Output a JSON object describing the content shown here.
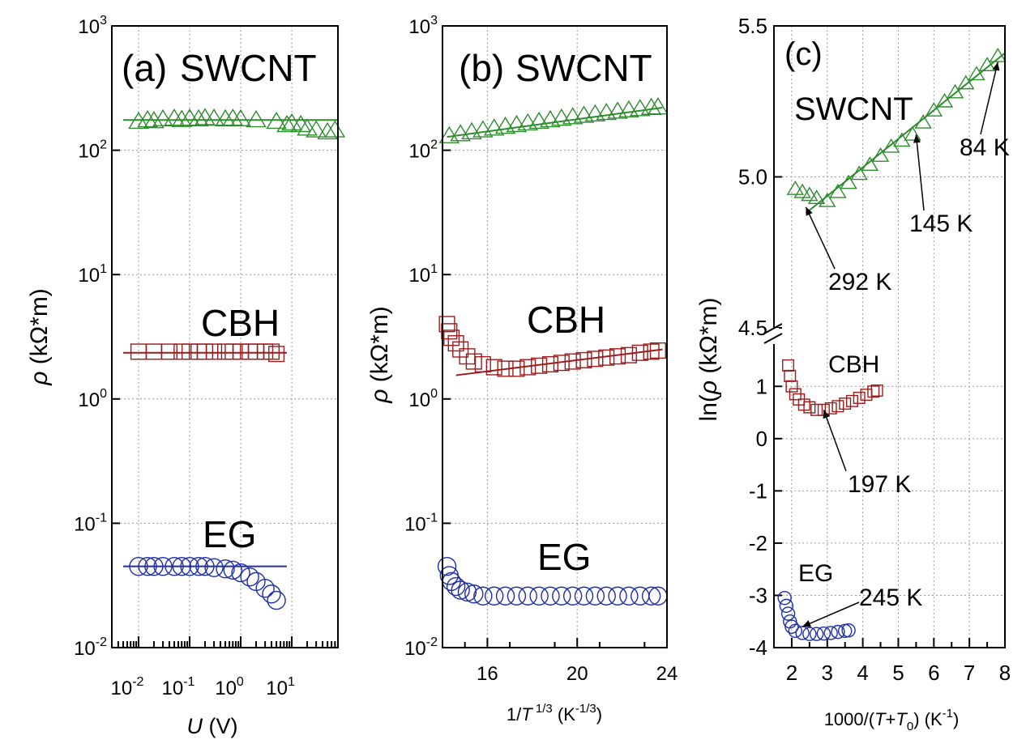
{
  "chart_data": [
    {
      "type": "scatter",
      "panel_label": "(a)",
      "xlabel": {
        "italic": "U",
        "rest": " (V)"
      },
      "ylabel": {
        "italic": "ρ",
        "rest": " (kΩ*m)"
      },
      "x_scale": "log",
      "y_scale": "log",
      "xlim": [
        0.003,
        80
      ],
      "ylim": [
        0.01,
        1000
      ],
      "x_ticks": [
        {
          "value": 0.01,
          "base": "10",
          "exp": "-2"
        },
        {
          "value": 0.1,
          "base": "10",
          "exp": "-1"
        },
        {
          "value": 1,
          "base": "10",
          "exp": "0"
        },
        {
          "value": 10,
          "base": "10",
          "exp": "1"
        }
      ],
      "y_ticks": [
        {
          "value": 0.01,
          "base": "10",
          "exp": "-2"
        },
        {
          "value": 0.1,
          "base": "10",
          "exp": "-1"
        },
        {
          "value": 1,
          "base": "10",
          "exp": "0"
        },
        {
          "value": 10,
          "base": "10",
          "exp": "1"
        },
        {
          "value": 100,
          "base": "10",
          "exp": "2"
        },
        {
          "value": 1000,
          "base": "10",
          "exp": "3"
        }
      ],
      "grid": true,
      "series": [
        {
          "name": "SWCNT",
          "marker": "triangle",
          "color": "#2e8b2e",
          "points": [
            [
              0.01,
              170
            ],
            [
              0.015,
              175
            ],
            [
              0.02,
              172
            ],
            [
              0.03,
              178
            ],
            [
              0.05,
              180
            ],
            [
              0.07,
              176
            ],
            [
              0.1,
              180
            ],
            [
              0.15,
              178
            ],
            [
              0.2,
              182
            ],
            [
              0.3,
              180
            ],
            [
              0.5,
              178
            ],
            [
              0.7,
              180
            ],
            [
              1,
              178
            ],
            [
              2,
              175
            ],
            [
              5,
              170
            ],
            [
              8,
              160
            ],
            [
              10,
              165
            ],
            [
              15,
              160
            ],
            [
              20,
              150
            ],
            [
              30,
              145
            ],
            [
              50,
              140
            ],
            [
              70,
              145
            ]
          ],
          "fit": [
            [
              0.005,
              175
            ],
            [
              80,
              175
            ]
          ]
        },
        {
          "name": "CBH",
          "marker": "square",
          "color": "#9b1c1c",
          "points": [
            [
              0.01,
              2.4
            ],
            [
              0.02,
              2.4
            ],
            [
              0.04,
              2.4
            ],
            [
              0.07,
              2.4
            ],
            [
              0.1,
              2.4
            ],
            [
              0.15,
              2.4
            ],
            [
              0.2,
              2.4
            ],
            [
              0.3,
              2.4
            ],
            [
              0.5,
              2.4
            ],
            [
              0.7,
              2.4
            ],
            [
              1,
              2.4
            ],
            [
              1.5,
              2.4
            ],
            [
              2,
              2.4
            ],
            [
              3,
              2.4
            ],
            [
              4,
              2.4
            ],
            [
              5,
              2.3
            ]
          ],
          "fit": [
            [
              0.005,
              2.35
            ],
            [
              8,
              2.35
            ]
          ]
        },
        {
          "name": "EG",
          "marker": "circle",
          "color": "#1f2fa8",
          "points": [
            [
              0.01,
              0.045
            ],
            [
              0.015,
              0.045
            ],
            [
              0.02,
              0.045
            ],
            [
              0.03,
              0.045
            ],
            [
              0.05,
              0.045
            ],
            [
              0.07,
              0.045
            ],
            [
              0.1,
              0.045
            ],
            [
              0.15,
              0.045
            ],
            [
              0.2,
              0.045
            ],
            [
              0.3,
              0.044
            ],
            [
              0.5,
              0.043
            ],
            [
              0.7,
              0.042
            ],
            [
              1,
              0.04
            ],
            [
              1.5,
              0.037
            ],
            [
              2,
              0.034
            ],
            [
              3,
              0.03
            ],
            [
              4,
              0.027
            ],
            [
              5,
              0.024
            ]
          ],
          "fit": [
            [
              0.005,
              0.045
            ],
            [
              8,
              0.045
            ]
          ]
        }
      ]
    },
    {
      "type": "scatter",
      "panel_label": "(b)",
      "xlabel": {
        "pre": "1/",
        "italic": "T",
        "sup": " 1/3",
        "mid": " (K",
        "sup2": "-1/3",
        "post": ")"
      },
      "ylabel": {
        "italic": "ρ",
        "rest": " (kΩ*m)"
      },
      "x_scale": "linear",
      "y_scale": "log",
      "xlim": [
        14,
        24
      ],
      "ylim": [
        0.01,
        1000
      ],
      "x_ticks": [
        16,
        20,
        24
      ],
      "y_ticks": [
        {
          "value": 0.01,
          "base": "10",
          "exp": "-2"
        },
        {
          "value": 0.1,
          "base": "10",
          "exp": "-1"
        },
        {
          "value": 1,
          "base": "10",
          "exp": "0"
        },
        {
          "value": 10,
          "base": "10",
          "exp": "1"
        },
        {
          "value": 100,
          "base": "10",
          "exp": "2"
        },
        {
          "value": 1000,
          "base": "10",
          "exp": "3"
        }
      ],
      "grid": true,
      "series": [
        {
          "name": "SWCNT",
          "marker": "triangle",
          "color": "#2e8b2e",
          "points": [
            [
              14.3,
              130
            ],
            [
              14.8,
              135
            ],
            [
              15.3,
              140
            ],
            [
              15.8,
              145
            ],
            [
              16.3,
              150
            ],
            [
              16.8,
              155
            ],
            [
              17.3,
              160
            ],
            [
              17.8,
              165
            ],
            [
              18.3,
              170
            ],
            [
              18.8,
              175
            ],
            [
              19.3,
              180
            ],
            [
              19.8,
              185
            ],
            [
              20.3,
              190
            ],
            [
              20.8,
              195
            ],
            [
              21.3,
              200
            ],
            [
              21.8,
              205
            ],
            [
              22.3,
              210
            ],
            [
              22.8,
              215
            ],
            [
              23.3,
              220
            ],
            [
              23.6,
              222
            ]
          ],
          "fit": [
            [
              14.2,
              128
            ],
            [
              23.8,
              220
            ]
          ]
        },
        {
          "name": "CBH",
          "marker": "square",
          "color": "#9b1c1c",
          "points": [
            [
              14.2,
              4
            ],
            [
              14.3,
              3.5
            ],
            [
              14.4,
              3.1
            ],
            [
              14.6,
              2.8
            ],
            [
              14.8,
              2.5
            ],
            [
              15.1,
              2.2
            ],
            [
              15.4,
              2.0
            ],
            [
              15.8,
              1.9
            ],
            [
              16.3,
              1.8
            ],
            [
              16.8,
              1.75
            ],
            [
              17.3,
              1.75
            ],
            [
              17.8,
              1.8
            ],
            [
              18.3,
              1.85
            ],
            [
              18.8,
              1.9
            ],
            [
              19.3,
              1.95
            ],
            [
              19.8,
              2.0
            ],
            [
              20.3,
              2.05
            ],
            [
              20.8,
              2.1
            ],
            [
              21.3,
              2.15
            ],
            [
              21.8,
              2.2
            ],
            [
              22.3,
              2.25
            ],
            [
              22.8,
              2.35
            ],
            [
              23.3,
              2.4
            ],
            [
              23.6,
              2.45
            ]
          ],
          "fit": [
            [
              14.6,
              1.55
            ],
            [
              23.8,
              2.5
            ]
          ]
        },
        {
          "name": "EG",
          "marker": "circle",
          "color": "#1f2fa8",
          "points": [
            [
              14.2,
              0.045
            ],
            [
              14.3,
              0.038
            ],
            [
              14.4,
              0.034
            ],
            [
              14.6,
              0.031
            ],
            [
              14.8,
              0.029
            ],
            [
              15.1,
              0.028
            ],
            [
              15.4,
              0.027
            ],
            [
              15.8,
              0.026
            ],
            [
              16.3,
              0.026
            ],
            [
              16.8,
              0.026
            ],
            [
              17.3,
              0.026
            ],
            [
              17.8,
              0.026
            ],
            [
              18.3,
              0.026
            ],
            [
              18.8,
              0.026
            ],
            [
              19.3,
              0.026
            ],
            [
              19.8,
              0.026
            ],
            [
              20.3,
              0.026
            ],
            [
              20.8,
              0.026
            ],
            [
              21.3,
              0.026
            ],
            [
              21.8,
              0.026
            ],
            [
              22.3,
              0.026
            ],
            [
              22.8,
              0.026
            ],
            [
              23.3,
              0.026
            ],
            [
              23.6,
              0.026
            ]
          ]
        }
      ]
    },
    {
      "type": "scatter",
      "panel_label": "(c)",
      "xlabel": {
        "pre": "1000/(",
        "italic": "T",
        "mid": "+",
        "italic2": "T",
        "sub": "0",
        "post": ") (K",
        "sup": "-1",
        "post2": ")"
      },
      "ylabel": {
        "pre": "ln(",
        "italic": "ρ",
        "rest": " (kΩ*m)"
      },
      "x_scale": "linear",
      "y_scale": "broken linear",
      "xlim": [
        1.5,
        8
      ],
      "ylim_upper": [
        4.5,
        5.5
      ],
      "ylim_lower": [
        -4,
        1.5
      ],
      "x_ticks": [
        2,
        3,
        4,
        5,
        6,
        7,
        8
      ],
      "y_ticks_upper": [
        "4.5",
        "5.0",
        "5.5"
      ],
      "y_ticks_lower": [
        "-4",
        "-3",
        "-2",
        "-1",
        "0",
        "1"
      ],
      "grid": true,
      "series": [
        {
          "name": "SWCNT",
          "marker": "triangle",
          "color": "#2e8b2e",
          "axis": "upper",
          "points": [
            [
              2.1,
              4.96
            ],
            [
              2.3,
              4.95
            ],
            [
              2.5,
              4.94
            ],
            [
              2.7,
              4.93
            ],
            [
              3.0,
              4.92
            ],
            [
              3.3,
              4.95
            ],
            [
              3.6,
              4.98
            ],
            [
              3.9,
              5.01
            ],
            [
              4.2,
              5.04
            ],
            [
              4.5,
              5.07
            ],
            [
              4.8,
              5.1
            ],
            [
              5.1,
              5.12
            ],
            [
              5.4,
              5.14
            ],
            [
              5.7,
              5.18
            ],
            [
              6.0,
              5.22
            ],
            [
              6.3,
              5.25
            ],
            [
              6.6,
              5.28
            ],
            [
              6.9,
              5.31
            ],
            [
              7.2,
              5.34
            ],
            [
              7.5,
              5.37
            ],
            [
              7.8,
              5.4
            ]
          ],
          "fit": [
            [
              2.4,
              4.88
            ],
            [
              8.0,
              5.41
            ]
          ]
        },
        {
          "name": "CBH",
          "marker": "square",
          "color": "#9b1c1c",
          "axis": "lower",
          "points": [
            [
              1.9,
              1.4
            ],
            [
              1.95,
              1.2
            ],
            [
              2.0,
              1.0
            ],
            [
              2.1,
              0.85
            ],
            [
              2.2,
              0.75
            ],
            [
              2.35,
              0.65
            ],
            [
              2.5,
              0.6
            ],
            [
              2.7,
              0.55
            ],
            [
              2.9,
              0.55
            ],
            [
              3.1,
              0.58
            ],
            [
              3.3,
              0.62
            ],
            [
              3.5,
              0.67
            ],
            [
              3.7,
              0.72
            ],
            [
              3.9,
              0.78
            ],
            [
              4.1,
              0.84
            ],
            [
              4.3,
              0.9
            ],
            [
              4.4,
              0.92
            ]
          ]
        },
        {
          "name": "EG",
          "marker": "circle",
          "color": "#1f2fa8",
          "axis": "lower",
          "points": [
            [
              1.8,
              -3.05
            ],
            [
              1.85,
              -3.2
            ],
            [
              1.9,
              -3.35
            ],
            [
              1.95,
              -3.5
            ],
            [
              2.0,
              -3.6
            ],
            [
              2.1,
              -3.68
            ],
            [
              2.3,
              -3.72
            ],
            [
              2.5,
              -3.74
            ],
            [
              2.7,
              -3.74
            ],
            [
              2.9,
              -3.73
            ],
            [
              3.1,
              -3.72
            ],
            [
              3.3,
              -3.7
            ],
            [
              3.5,
              -3.68
            ],
            [
              3.6,
              -3.67
            ]
          ]
        }
      ],
      "annotations": [
        {
          "text": "84 K",
          "tip": [
            7.8,
            5.38
          ],
          "axis": "upper"
        },
        {
          "text": "145 K",
          "tip": [
            5.5,
            5.14
          ],
          "axis": "upper"
        },
        {
          "text": "292 K",
          "tip": [
            2.4,
            4.9
          ],
          "axis": "upper"
        },
        {
          "text": "197 K",
          "tip": [
            2.9,
            0.55
          ],
          "axis": "lower"
        },
        {
          "text": "245 K",
          "tip": [
            2.3,
            -3.6
          ],
          "axis": "lower"
        }
      ]
    }
  ]
}
